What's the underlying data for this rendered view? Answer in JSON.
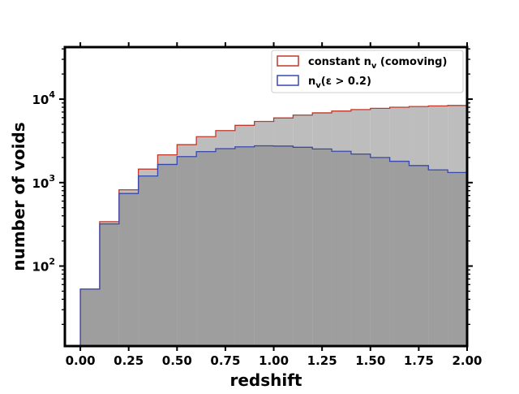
{
  "chart_data": {
    "type": "histogram",
    "title": "",
    "xlabel": "redshift",
    "ylabel": "number of voids",
    "xlim": [
      -0.08,
      2.0
    ],
    "ylim": [
      11,
      42000
    ],
    "yscale": "log",
    "grid": false,
    "legend_position": "top-right",
    "x_ticks": [
      0.0,
      0.25,
      0.5,
      0.75,
      1.0,
      1.25,
      1.5,
      1.75,
      2.0
    ],
    "x_tick_labels": [
      "0.00",
      "0.25",
      "0.50",
      "0.75",
      "1.00",
      "1.25",
      "1.50",
      "1.75",
      "2.00"
    ],
    "y_ticks": [
      {
        "value": 100,
        "base": "10",
        "exp": "2"
      },
      {
        "value": 1000,
        "base": "10",
        "exp": "3"
      },
      {
        "value": 10000,
        "base": "10",
        "exp": "4"
      }
    ],
    "bin_edges": [
      0.0,
      0.1,
      0.2,
      0.3,
      0.4,
      0.5,
      0.6,
      0.7,
      0.8,
      0.9,
      1.0,
      1.1,
      1.2,
      1.3,
      1.4,
      1.5,
      1.6,
      1.7,
      1.8,
      1.9,
      2.0
    ],
    "series": [
      {
        "name": "constant n_v (comoving)",
        "legend_main": "constant n",
        "legend_sub": "v",
        "legend_suffix": " (comoving)",
        "line_color": "#c0392b",
        "fill_color": "#bdbdbd",
        "values": [
          53,
          340,
          820,
          1450,
          2150,
          2850,
          3550,
          4200,
          4850,
          5400,
          5950,
          6450,
          6850,
          7200,
          7500,
          7750,
          8000,
          8150,
          8300,
          8400
        ]
      },
      {
        "name": "n_v(ε > 0.2)",
        "legend_main": "n",
        "legend_sub": "v",
        "legend_suffix": "(ε > 0.2)",
        "line_color": "#3949ab",
        "fill_color": "#9e9e9e",
        "values": [
          53,
          320,
          740,
          1200,
          1650,
          2050,
          2350,
          2550,
          2680,
          2760,
          2740,
          2650,
          2530,
          2370,
          2200,
          2000,
          1800,
          1600,
          1420,
          1320
        ]
      }
    ]
  }
}
